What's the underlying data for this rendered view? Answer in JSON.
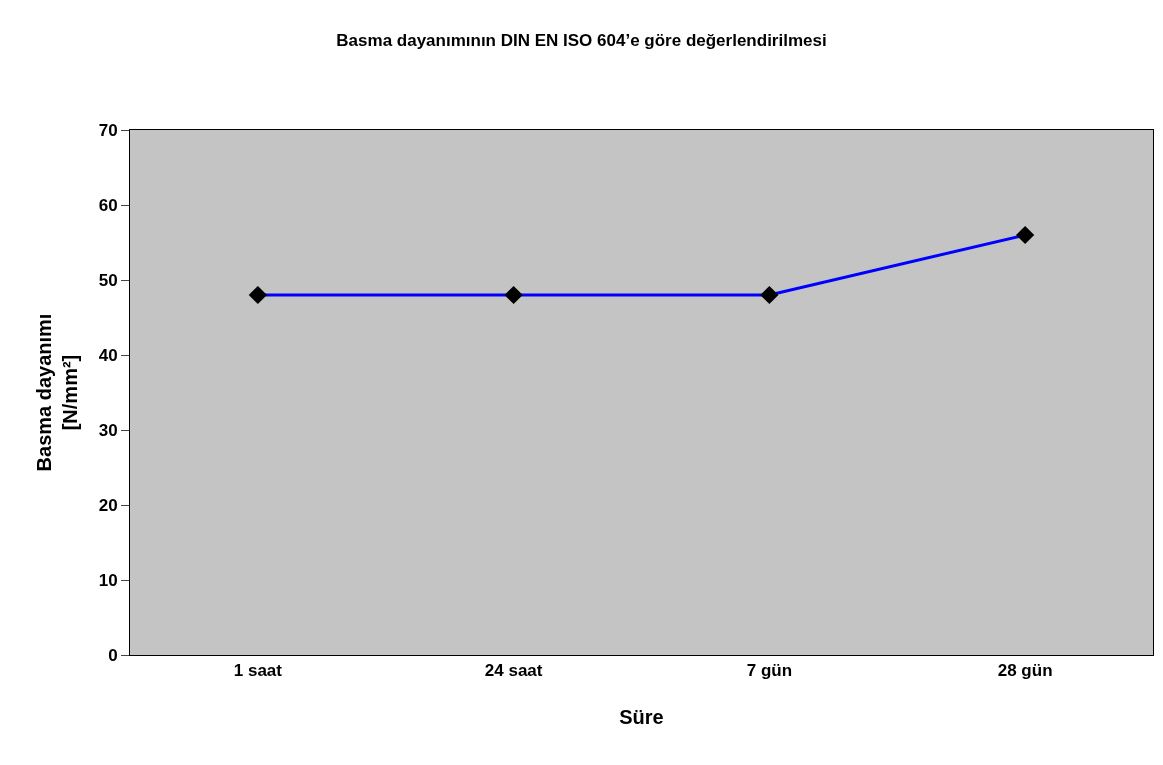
{
  "chart_data": {
    "type": "line",
    "title": "Basma dayanımının DIN EN ISO 604’e göre değerlendirilmesi",
    "xlabel": "Süre",
    "ylabel": "Basma dayanımı\n[N/mm²]",
    "categories": [
      "1 saat",
      "24 saat",
      "7 gün",
      "28 gün"
    ],
    "series": [
      {
        "color": "#0000ff",
        "values": [
          48,
          48,
          48,
          56
        ]
      }
    ],
    "ylim": [
      0,
      70
    ],
    "yticks": [
      0,
      10,
      20,
      30,
      40,
      50,
      60,
      70
    ],
    "marker": "diamond",
    "line_style": "solid",
    "grid": false
  }
}
